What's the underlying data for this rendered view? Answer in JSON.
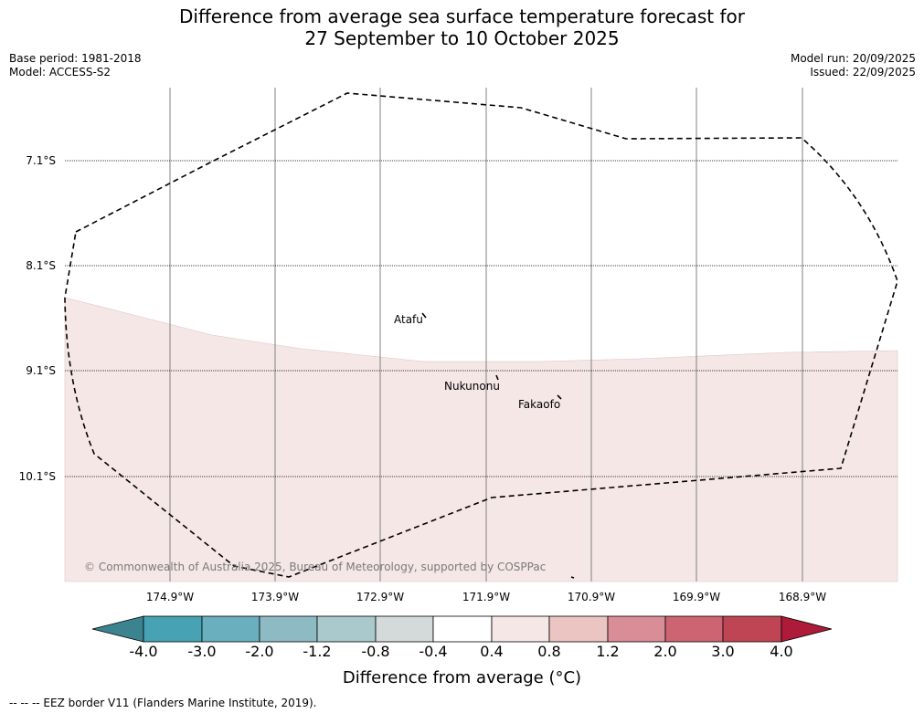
{
  "title": {
    "line1": "Difference from average sea surface temperature forecast for",
    "line2": "27 September to 10 October 2025"
  },
  "meta": {
    "base_period": "Base period: 1981-2018",
    "model": "Model: ACCESS-S2",
    "model_run": "Model run: 20/09/2025",
    "issued": "Issued: 22/09/2025"
  },
  "map": {
    "latitude_labels": [
      "7.1°S",
      "8.1°S",
      "9.1°S",
      "10.1°S"
    ],
    "longitude_labels": [
      "174.9°W",
      "173.9°W",
      "172.9°W",
      "171.9°W",
      "170.9°W",
      "169.9°W",
      "168.9°W"
    ],
    "places": [
      "Atafu",
      "Nukunonu",
      "Fakaofo"
    ],
    "copyright": "© Commonwealth of Australia 2025, Bureau of Meteorology, supported by COSPPac",
    "anomaly_fill_color": "#f5e7e6",
    "ocean_color": "#ffffff"
  },
  "colorbar": {
    "ticks": [
      "-4.0",
      "-3.0",
      "-2.0",
      "-1.2",
      "-0.8",
      "-0.4",
      "0.4",
      "0.8",
      "1.2",
      "2.0",
      "3.0",
      "4.0"
    ],
    "colors": [
      "#3c8390",
      "#47a2b3",
      "#6aafbd",
      "#8ebac4",
      "#a9c9cc",
      "#d3dad9",
      "#ffffff",
      "#f5e7e6",
      "#eac5c2",
      "#d98d96",
      "#cd6471",
      "#c04554",
      "#ad1a3a"
    ],
    "label": "Difference from average (°C)"
  },
  "footnote": "--  --  -- EEZ border V11 (Flanders Marine Institute, 2019)."
}
